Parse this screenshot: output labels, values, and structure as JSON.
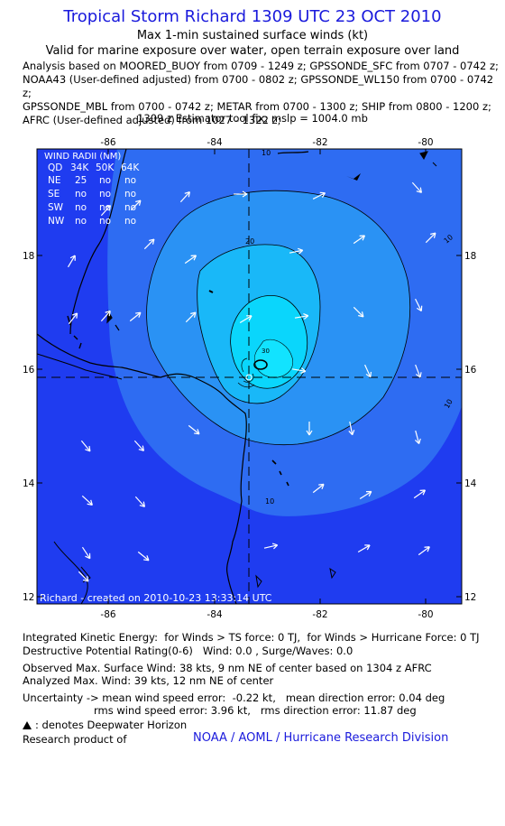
{
  "header": {
    "title": "Tropical Storm Richard 1309 UTC 23 OCT 2010",
    "line2": "Max 1-min sustained surface winds (kt)",
    "line3": "Valid for marine exposure over water, open terrain exposure over land",
    "analysis": "Analysis based on MOORED_BUOY from 0709 - 1249 z; GPSSONDE_SFC from 0707 - 0742 z;\nNOAA43 (User-defined adjusted) from 0700 - 0802 z; GPSSONDE_WL150 from 0700 - 0742 z;\nGPSSONDE_MBL from 0700 - 0742 z; METAR from 0700 - 1300 z; SHIP from 0800 - 1200 z;\nAFRC (User-defined adjusted) from 1027 - 1322 z;",
    "fix": "1309 z Estimator tool fix; mslp = 1004.0 mb"
  },
  "map": {
    "lon_ticks": [
      "-86",
      "-84",
      "-82",
      "-80"
    ],
    "lat_ticks": [
      "18",
      "16",
      "14",
      "12"
    ],
    "contour_labels": [
      "10",
      "20",
      "30",
      "10",
      "10",
      "10"
    ],
    "colors": {
      "band_lt10": "#1f3cf0",
      "band_10_20": "#2e6cf2",
      "band_20_30": "#2a92f4",
      "band_30": "#19b8f8",
      "band_inner": "#0ad6fc"
    },
    "wind_radii": {
      "title": "WIND RADII (NM)",
      "header": [
        "QD",
        "34K",
        "50K",
        "64K"
      ],
      "rows": [
        [
          "NE",
          "25",
          "no",
          "no"
        ],
        [
          "SE",
          "no",
          "no",
          "no"
        ],
        [
          "SW",
          "no",
          "no",
          "no"
        ],
        [
          "NW",
          "no",
          "no",
          "no"
        ]
      ]
    },
    "footer_text": "Richard - created on 2010-10-23 13:33:14 UTC"
  },
  "info": {
    "ike": "Integrated Kinetic Energy:  for Winds > TS force: 0 TJ,  for Winds > Hurricane Force: 0 TJ",
    "dpr": "Destructive Potential Rating(0-6)   Wind: 0.0 , Surge/Waves: 0.0",
    "obs_max": "Observed Max. Surface Wind: 38 kts, 9 nm NE of center based on 1304 z AFRC",
    "an_max": "Analyzed Max. Wind: 39 kts, 12 nm NE of center",
    "unc1": "Uncertainty -> mean wind speed error:  -0.22 kt,   mean direction error: 0.04 deg",
    "unc2": "rms wind speed error: 3.96 kt,   rms direction error: 11.87 deg",
    "dwh": ": denotes Deepwater Horizon",
    "research": "Research product of",
    "credit": "NOAA / AOML / Hurricane Research Division"
  }
}
